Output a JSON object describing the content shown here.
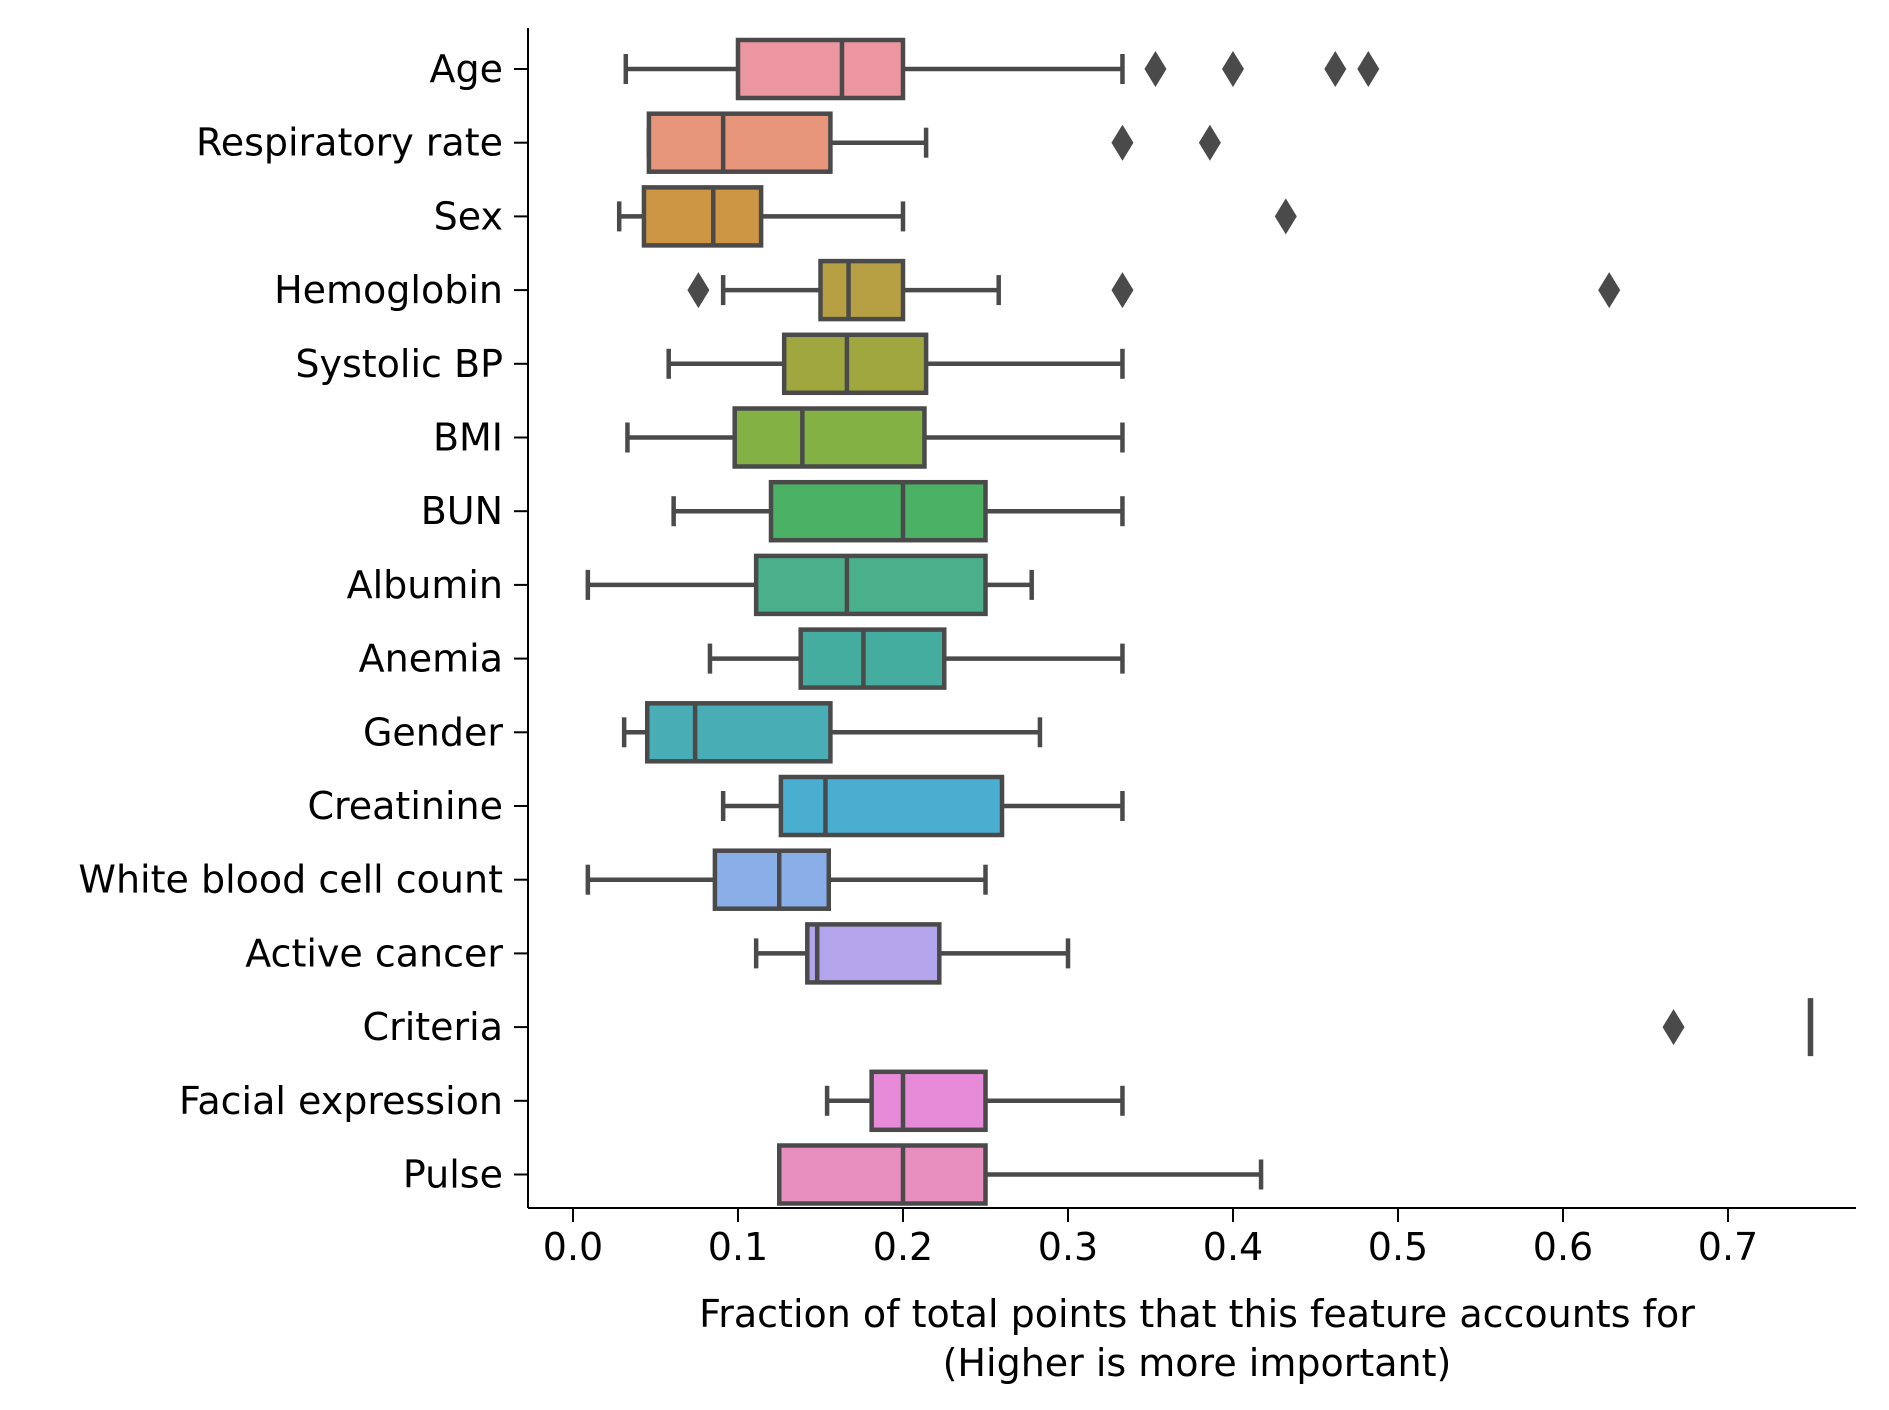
{
  "chart_data": {
    "type": "box",
    "orientation": "horizontal",
    "title": "",
    "xlabel_line1": "Fraction of total points that this feature accounts for",
    "xlabel_line2": "(Higher is more important)",
    "ylabel": "",
    "xlim": [
      -0.027,
      0.78
    ],
    "xticks": [
      0.0,
      0.1,
      0.2,
      0.3,
      0.4,
      0.5,
      0.6,
      0.7
    ],
    "xtick_labels": [
      "0.0",
      "0.1",
      "0.2",
      "0.3",
      "0.4",
      "0.5",
      "0.6",
      "0.7"
    ],
    "grid": false,
    "legend": "none",
    "box_edge_color": "#4a4a4a",
    "series": [
      {
        "label": "Age",
        "color": "#ec96a1",
        "whisker_low": 0.032,
        "q1": 0.1,
        "median": 0.163,
        "q3": 0.2,
        "whisker_high": 0.333,
        "outliers": [
          0.353,
          0.4,
          0.462,
          0.482
        ]
      },
      {
        "label": "Respiratory rate",
        "color": "#e7967b",
        "whisker_low": 0.046,
        "q1": 0.046,
        "median": 0.091,
        "q3": 0.156,
        "whisker_high": 0.214,
        "outliers": [
          0.333,
          0.386
        ]
      },
      {
        "label": "Sex",
        "color": "#cd9644",
        "whisker_low": 0.028,
        "q1": 0.043,
        "median": 0.085,
        "q3": 0.114,
        "whisker_high": 0.2,
        "outliers": [
          0.432
        ]
      },
      {
        "label": "Hemoglobin",
        "color": "#b7a044",
        "whisker_low": 0.091,
        "q1": 0.15,
        "median": 0.167,
        "q3": 0.2,
        "whisker_high": 0.258,
        "outliers": [
          0.076,
          0.333,
          0.628
        ]
      },
      {
        "label": "Systolic BP",
        "color": "#a0a73f",
        "whisker_low": 0.058,
        "q1": 0.128,
        "median": 0.166,
        "q3": 0.214,
        "whisker_high": 0.333,
        "outliers": []
      },
      {
        "label": "BMI",
        "color": "#84b144",
        "whisker_low": 0.033,
        "q1": 0.098,
        "median": 0.139,
        "q3": 0.213,
        "whisker_high": 0.333,
        "outliers": []
      },
      {
        "label": "BUN",
        "color": "#4bb265",
        "whisker_low": 0.061,
        "q1": 0.12,
        "median": 0.2,
        "q3": 0.25,
        "whisker_high": 0.333,
        "outliers": []
      },
      {
        "label": "Albumin",
        "color": "#4aaf8b",
        "whisker_low": 0.009,
        "q1": 0.111,
        "median": 0.166,
        "q3": 0.25,
        "whisker_high": 0.278,
        "outliers": []
      },
      {
        "label": "Anemia",
        "color": "#45ada0",
        "whisker_low": 0.083,
        "q1": 0.138,
        "median": 0.176,
        "q3": 0.225,
        "whisker_high": 0.333,
        "outliers": []
      },
      {
        "label": "Gender",
        "color": "#48adb5",
        "whisker_low": 0.031,
        "q1": 0.045,
        "median": 0.074,
        "q3": 0.156,
        "whisker_high": 0.283,
        "outliers": []
      },
      {
        "label": "Creatinine",
        "color": "#4aaed1",
        "whisker_low": 0.091,
        "q1": 0.126,
        "median": 0.153,
        "q3": 0.26,
        "whisker_high": 0.333,
        "outliers": []
      },
      {
        "label": "White blood cell count",
        "color": "#8aaee8",
        "whisker_low": 0.009,
        "q1": 0.086,
        "median": 0.125,
        "q3": 0.155,
        "whisker_high": 0.25,
        "outliers": []
      },
      {
        "label": "Active cancer",
        "color": "#b4a4ec",
        "whisker_low": 0.111,
        "q1": 0.142,
        "median": 0.148,
        "q3": 0.222,
        "whisker_high": 0.3,
        "outliers": []
      },
      {
        "label": "Criteria",
        "color": "#d494e4",
        "whisker_low": 0.75,
        "q1": 0.75,
        "median": 0.75,
        "q3": 0.75,
        "whisker_high": 0.75,
        "outliers": [
          0.667
        ]
      },
      {
        "label": "Facial expression",
        "color": "#e78bd8",
        "whisker_low": 0.154,
        "q1": 0.181,
        "median": 0.2,
        "q3": 0.25,
        "whisker_high": 0.333,
        "outliers": []
      },
      {
        "label": "Pulse",
        "color": "#e98fbf",
        "whisker_low": 0.125,
        "q1": 0.125,
        "median": 0.2,
        "q3": 0.25,
        "whisker_high": 0.417,
        "outliers": []
      }
    ]
  }
}
